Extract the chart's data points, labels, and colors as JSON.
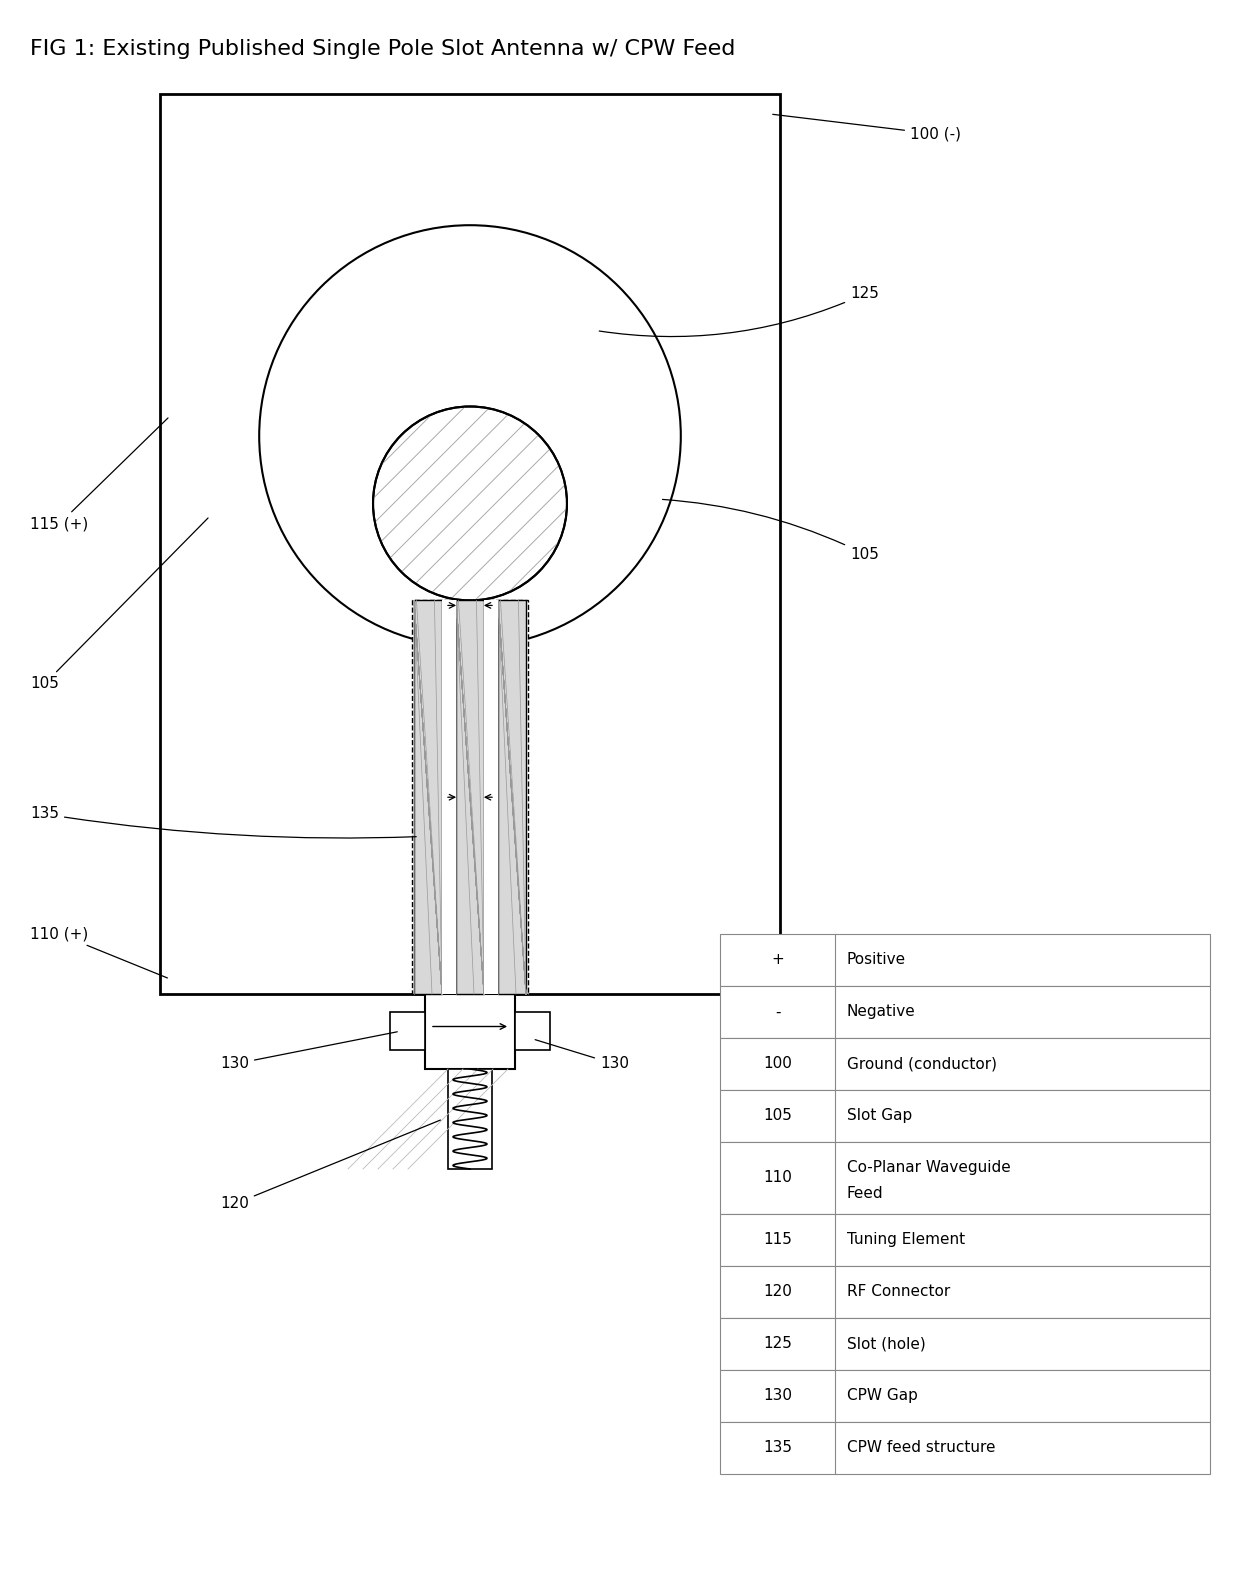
{
  "title": "FIG 1: Existing Published Single Pole Slot Antenna w/ CPW Feed",
  "title_fontsize": 16,
  "bg_color": "#ffffff",
  "line_color": "#000000",
  "legend_table": {
    "col1": [
      "+",
      "-",
      "100",
      "105",
      "110",
      "115",
      "120",
      "125",
      "130",
      "135"
    ],
    "col2": [
      "Positive",
      "Negative",
      "Ground (conductor)",
      "Slot Gap",
      "Co-Planar Waveguide\nFeed",
      "Tuning Element",
      "RF Connector",
      "Slot (hole)",
      "CPW Gap",
      "CPW feed structure"
    ]
  }
}
